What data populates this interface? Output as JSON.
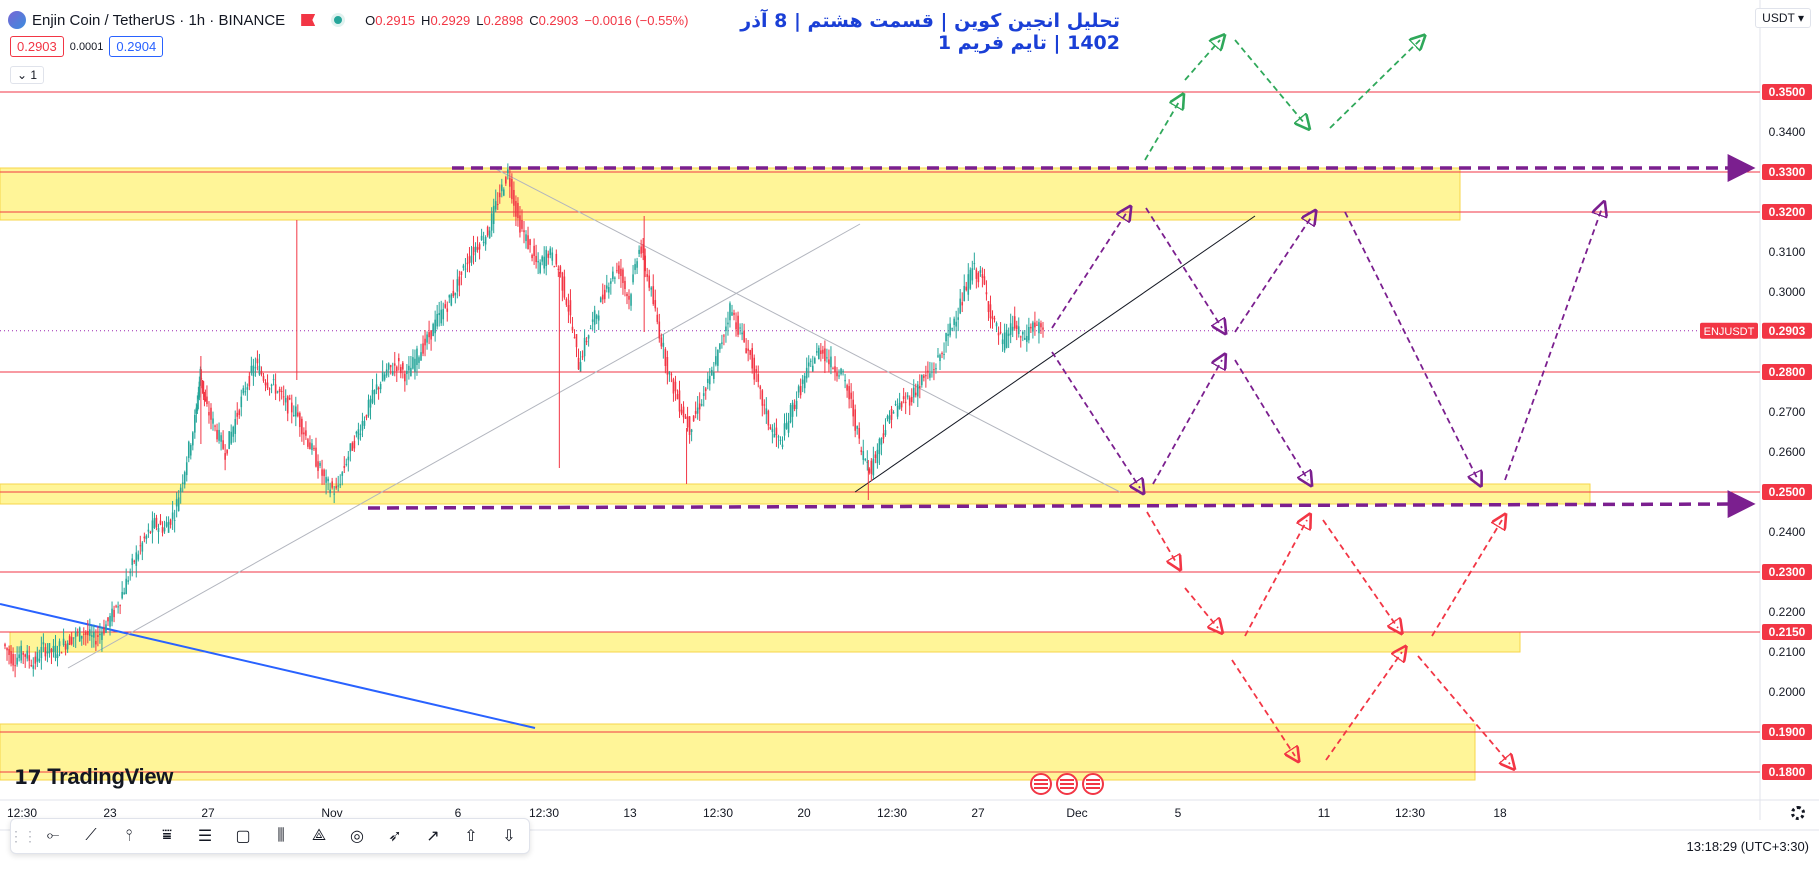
{
  "header": {
    "symbol_title": "Enjin Coin / TetherUS · 1h · BINANCE",
    "ohlc": [
      {
        "label": "O",
        "value": "0.2915"
      },
      {
        "label": "H",
        "value": "0.2929"
      },
      {
        "label": "L",
        "value": "0.2898"
      },
      {
        "label": "C",
        "value": "0.2903"
      }
    ],
    "change": "−0.0016 (−0.55%)",
    "sell_price": "0.2903",
    "spread": "0.0001",
    "buy_price": "0.2904",
    "indicator_toggle": "1",
    "currency": "USDT"
  },
  "analysis_title": "تحلیل انجین کوین | قسمت هشتم | 8 آذر 1402 | تایم فریم 1",
  "footer": {
    "logo_text": "TradingView",
    "clock": "13:18:29 (UTC+3:30)"
  },
  "colors": {
    "bullish": "#26a69a",
    "bearish": "#f23645",
    "zone": "#fff176",
    "purple": "#7b1f8f",
    "green_arrow": "#2fa85a",
    "red_arrow": "#f23645",
    "title": "#1a3fd6"
  },
  "toolbar_icons": [
    "grip-icon",
    "horizontal-ray-icon",
    "trendline-icon",
    "vertical-line-icon",
    "parallel-channel-icon",
    "fib-retracement-icon",
    "rectangle-icon",
    "pitchfork-icon",
    "triangle-pattern-icon",
    "ellipse-icon",
    "arrow-marker-icon",
    "arrow-icon",
    "arrow-up-icon",
    "arrow-down-icon"
  ],
  "chart_data": {
    "type": "candlestick",
    "symbol": "ENJUSDT",
    "last_price": 0.2903,
    "last_price_label": "ENJUSDT",
    "x_ticks": [
      "12:30",
      "23",
      "27",
      "Nov",
      "6",
      "12:30",
      "13",
      "12:30",
      "20",
      "12:30",
      "27",
      "Dec",
      "5",
      "11",
      "12:30",
      "18"
    ],
    "y_ticks": [
      0.34,
      0.31,
      0.3,
      0.27,
      0.26,
      0.24,
      0.22,
      0.21,
      0.2
    ],
    "horizontal_levels": [
      0.35,
      0.33,
      0.32,
      0.28,
      0.25,
      0.23,
      0.215,
      0.19,
      0.18
    ],
    "level_labels": [
      "0.3500",
      "0.3300",
      "0.3200",
      "0.2800",
      "0.2500",
      "0.2300",
      "0.2150",
      "0.1900",
      "0.1800"
    ],
    "tick_labels": [
      "0.3400",
      "0.3100",
      "0.3000",
      "0.2700",
      "0.2600",
      "0.2400",
      "0.2200",
      "0.2100",
      "0.2000"
    ],
    "zones": [
      [
        0.318,
        0.331
      ],
      [
        0.247,
        0.252
      ],
      [
        0.21,
        0.215
      ],
      [
        0.178,
        0.192
      ]
    ],
    "ylim": [
      0.178,
      0.363
    ],
    "price_path": [
      [
        0,
        0.212
      ],
      [
        10,
        0.208
      ],
      [
        20,
        0.21
      ],
      [
        30,
        0.207
      ],
      [
        40,
        0.211
      ],
      [
        50,
        0.21
      ],
      [
        60,
        0.212
      ],
      [
        70,
        0.214
      ],
      [
        80,
        0.215
      ],
      [
        90,
        0.213
      ],
      [
        100,
        0.216
      ],
      [
        110,
        0.22
      ],
      [
        120,
        0.226
      ],
      [
        130,
        0.233
      ],
      [
        140,
        0.238
      ],
      [
        150,
        0.242
      ],
      [
        160,
        0.241
      ],
      [
        170,
        0.245
      ],
      [
        180,
        0.256
      ],
      [
        190,
        0.268
      ],
      [
        195,
        0.28
      ],
      [
        200,
        0.272
      ],
      [
        210,
        0.266
      ],
      [
        220,
        0.26
      ],
      [
        230,
        0.268
      ],
      [
        240,
        0.276
      ],
      [
        250,
        0.282
      ],
      [
        260,
        0.278
      ],
      [
        270,
        0.276
      ],
      [
        280,
        0.272
      ],
      [
        290,
        0.27
      ],
      [
        300,
        0.264
      ],
      [
        310,
        0.258
      ],
      [
        320,
        0.252
      ],
      [
        330,
        0.25
      ],
      [
        340,
        0.258
      ],
      [
        350,
        0.264
      ],
      [
        360,
        0.27
      ],
      [
        370,
        0.276
      ],
      [
        380,
        0.28
      ],
      [
        390,
        0.282
      ],
      [
        400,
        0.279
      ],
      [
        410,
        0.284
      ],
      [
        420,
        0.288
      ],
      [
        430,
        0.293
      ],
      [
        440,
        0.297
      ],
      [
        450,
        0.302
      ],
      [
        460,
        0.308
      ],
      [
        470,
        0.312
      ],
      [
        480,
        0.315
      ],
      [
        490,
        0.323
      ],
      [
        500,
        0.33
      ],
      [
        510,
        0.318
      ],
      [
        520,
        0.312
      ],
      [
        530,
        0.306
      ],
      [
        540,
        0.31
      ],
      [
        550,
        0.306
      ],
      [
        560,
        0.296
      ],
      [
        570,
        0.282
      ],
      [
        580,
        0.29
      ],
      [
        590,
        0.296
      ],
      [
        600,
        0.303
      ],
      [
        610,
        0.306
      ],
      [
        620,
        0.298
      ],
      [
        630,
        0.312
      ],
      [
        640,
        0.302
      ],
      [
        650,
        0.29
      ],
      [
        660,
        0.279
      ],
      [
        670,
        0.272
      ],
      [
        680,
        0.266
      ],
      [
        690,
        0.272
      ],
      [
        700,
        0.278
      ],
      [
        710,
        0.286
      ],
      [
        720,
        0.296
      ],
      [
        730,
        0.29
      ],
      [
        740,
        0.284
      ],
      [
        750,
        0.274
      ],
      [
        760,
        0.266
      ],
      [
        770,
        0.262
      ],
      [
        780,
        0.27
      ],
      [
        790,
        0.276
      ],
      [
        800,
        0.282
      ],
      [
        810,
        0.286
      ],
      [
        820,
        0.282
      ],
      [
        830,
        0.28
      ],
      [
        840,
        0.272
      ],
      [
        850,
        0.26
      ],
      [
        860,
        0.256
      ],
      [
        870,
        0.264
      ],
      [
        880,
        0.27
      ],
      [
        890,
        0.272
      ],
      [
        900,
        0.274
      ],
      [
        910,
        0.278
      ],
      [
        920,
        0.28
      ],
      [
        930,
        0.285
      ],
      [
        940,
        0.292
      ],
      [
        950,
        0.298
      ],
      [
        960,
        0.306
      ],
      [
        970,
        0.303
      ],
      [
        980,
        0.293
      ],
      [
        990,
        0.287
      ],
      [
        1000,
        0.292
      ],
      [
        1010,
        0.288
      ],
      [
        1020,
        0.292
      ],
      [
        1030,
        0.29
      ]
    ]
  }
}
